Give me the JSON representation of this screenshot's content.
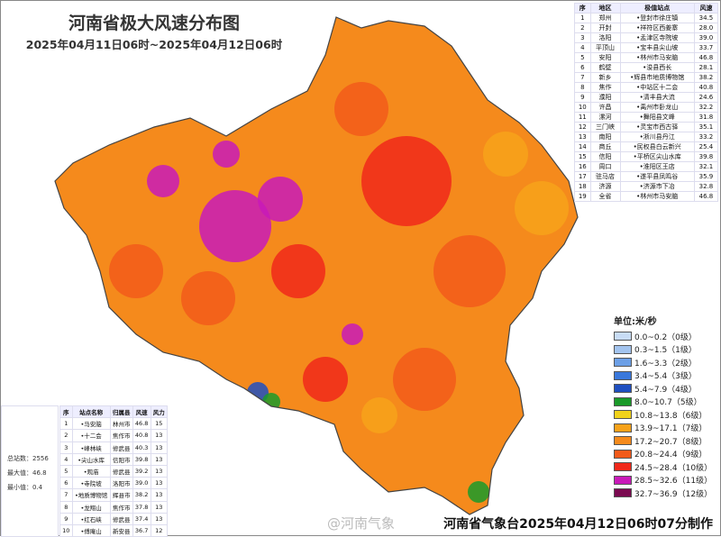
{
  "header": {
    "title": "河南省极大风速分布图",
    "subtitle": "2025年04月11日06时~2025年04月12日06时"
  },
  "city_table": {
    "headers": [
      "序",
      "地区",
      "极值站点",
      "风速"
    ],
    "rows": [
      [
        "1",
        "郑州",
        "•登封市徐庄镇",
        "34.5"
      ],
      [
        "2",
        "开封",
        "•祥符区西姜寨",
        "28.0"
      ],
      [
        "3",
        "洛阳",
        "•孟津区寺院坡",
        "39.0"
      ],
      [
        "4",
        "平顶山",
        "•宝丰县尖山坡",
        "33.7"
      ],
      [
        "5",
        "安阳",
        "•林州市马安脑",
        "46.8"
      ],
      [
        "6",
        "鹤壁",
        "•浚县西长",
        "28.1"
      ],
      [
        "7",
        "新乡",
        "•辉县市地质博物馆",
        "38.2"
      ],
      [
        "8",
        "焦作",
        "•中站区十二会",
        "40.8"
      ],
      [
        "9",
        "濮阳",
        "•清丰县大流",
        "24.6"
      ],
      [
        "10",
        "许昌",
        "•禹州市卧龙山",
        "32.2"
      ],
      [
        "11",
        "漯河",
        "•舞阳县文峰",
        "31.8"
      ],
      [
        "12",
        "三门峡",
        "•灵宝市西古驿",
        "35.1"
      ],
      [
        "13",
        "南阳",
        "•淅川县丹江",
        "33.2"
      ],
      [
        "14",
        "商丘",
        "•民权县白云新兴",
        "25.4"
      ],
      [
        "15",
        "信阳",
        "•平桥区尖山水库",
        "39.8"
      ],
      [
        "16",
        "周口",
        "•淮阳区王店",
        "32.1"
      ],
      [
        "17",
        "驻马店",
        "•遂平县凤鸣谷",
        "35.9"
      ],
      [
        "18",
        "济源",
        "•济源市下冶",
        "32.8"
      ],
      [
        "19",
        "全省",
        "•林州市马安脑",
        "46.8"
      ]
    ]
  },
  "top_table": {
    "headers": [
      "序",
      "站点名称",
      "归属县",
      "风速",
      "风力"
    ],
    "rows": [
      [
        "1",
        "•马安脑",
        "林州市",
        "46.8",
        "15"
      ],
      [
        "2",
        "•十二会",
        "焦作市",
        "40.8",
        "13"
      ],
      [
        "3",
        "•峰林峡",
        "修武县",
        "40.3",
        "13"
      ],
      [
        "4",
        "•尖山水库",
        "信阳市",
        "39.8",
        "13"
      ],
      [
        "5",
        "•观庙",
        "修武县",
        "39.2",
        "13"
      ],
      [
        "6",
        "•寺院坡",
        "洛阳市",
        "39.0",
        "13"
      ],
      [
        "7",
        "•地质博物馆",
        "辉县市",
        "38.2",
        "13"
      ],
      [
        "8",
        "•龙翔山",
        "焦作市",
        "37.8",
        "13"
      ],
      [
        "9",
        "•红石峡",
        "修武县",
        "37.4",
        "13"
      ],
      [
        "10",
        "•傅庵山",
        "新安县",
        "36.7",
        "12"
      ]
    ]
  },
  "stats": {
    "total": "总站数：2556",
    "max": "最大值：46.8",
    "min": "最小值：0.4"
  },
  "legend": {
    "unit": "单位:米/秒",
    "items": [
      {
        "label": "0.0~0.2（0级）",
        "color": "#c8dcf5"
      },
      {
        "label": "0.3~1.5（1级）",
        "color": "#a3c4ef"
      },
      {
        "label": "1.6~3.3（2级）",
        "color": "#6c9fe6"
      },
      {
        "label": "3.4~5.4（3级）",
        "color": "#3a78dc"
      },
      {
        "label": "5.4~7.9（4级）",
        "color": "#1f4fc0"
      },
      {
        "label": "8.0~10.7（5级）",
        "color": "#1a9a2a"
      },
      {
        "label": "10.8~13.8（6级）",
        "color": "#f2d21a"
      },
      {
        "label": "13.9~17.1（7级）",
        "color": "#f7a21a"
      },
      {
        "label": "17.2~20.7（8级）",
        "color": "#f58a1c"
      },
      {
        "label": "20.8~24.4（9级）",
        "color": "#f25a1a"
      },
      {
        "label": "24.5~28.4（10级）",
        "color": "#f0281a"
      },
      {
        "label": "28.5~32.6（11级）",
        "color": "#c81ab8"
      },
      {
        "label": "32.7~36.9（12级）",
        "color": "#7a0a50"
      }
    ]
  },
  "watermark": "@河南气象",
  "footer": "河南省气象台2025年04月12日06时07分制作"
}
